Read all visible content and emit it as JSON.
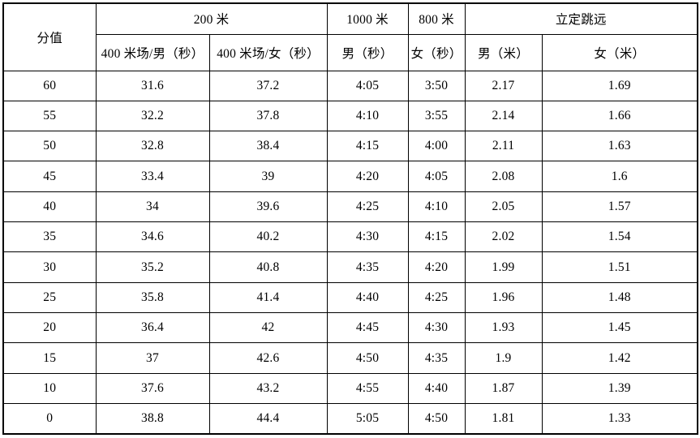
{
  "table": {
    "header": {
      "score_label": "分值",
      "group_200m": "200 米",
      "group_1000m": "1000 米",
      "group_800m": "800 米",
      "group_long_jump": "立定跳远",
      "sub_200m_male": "400 米场/男（秒）",
      "sub_200m_female": "400 米场/女（秒）",
      "sub_1000m_male": "男（秒）",
      "sub_800m_female": "女（秒）",
      "sub_jump_male": "男（米）",
      "sub_jump_female": "女（米）"
    },
    "rows": [
      [
        "60",
        "31.6",
        "37.2",
        "4:05",
        "3:50",
        "2.17",
        "1.69"
      ],
      [
        "55",
        "32.2",
        "37.8",
        "4:10",
        "3:55",
        "2.14",
        "1.66"
      ],
      [
        "50",
        "32.8",
        "38.4",
        "4:15",
        "4:00",
        "2.11",
        "1.63"
      ],
      [
        "45",
        "33.4",
        "39",
        "4:20",
        "4:05",
        "2.08",
        "1.6"
      ],
      [
        "40",
        "34",
        "39.6",
        "4:25",
        "4:10",
        "2.05",
        "1.57"
      ],
      [
        "35",
        "34.6",
        "40.2",
        "4:30",
        "4:15",
        "2.02",
        "1.54"
      ],
      [
        "30",
        "35.2",
        "40.8",
        "4:35",
        "4:20",
        "1.99",
        "1.51"
      ],
      [
        "25",
        "35.8",
        "41.4",
        "4:40",
        "4:25",
        "1.96",
        "1.48"
      ],
      [
        "20",
        "36.4",
        "42",
        "4:45",
        "4:30",
        "1.93",
        "1.45"
      ],
      [
        "15",
        "37",
        "42.6",
        "4:50",
        "4:35",
        "1.9",
        "1.42"
      ],
      [
        "10",
        "37.6",
        "43.2",
        "4:55",
        "4:40",
        "1.87",
        "1.39"
      ],
      [
        "0",
        "38.8",
        "44.4",
        "5:05",
        "4:50",
        "1.81",
        "1.33"
      ]
    ],
    "colors": {
      "border": "#000000",
      "background": "#ffffff",
      "text": "#000000"
    }
  }
}
